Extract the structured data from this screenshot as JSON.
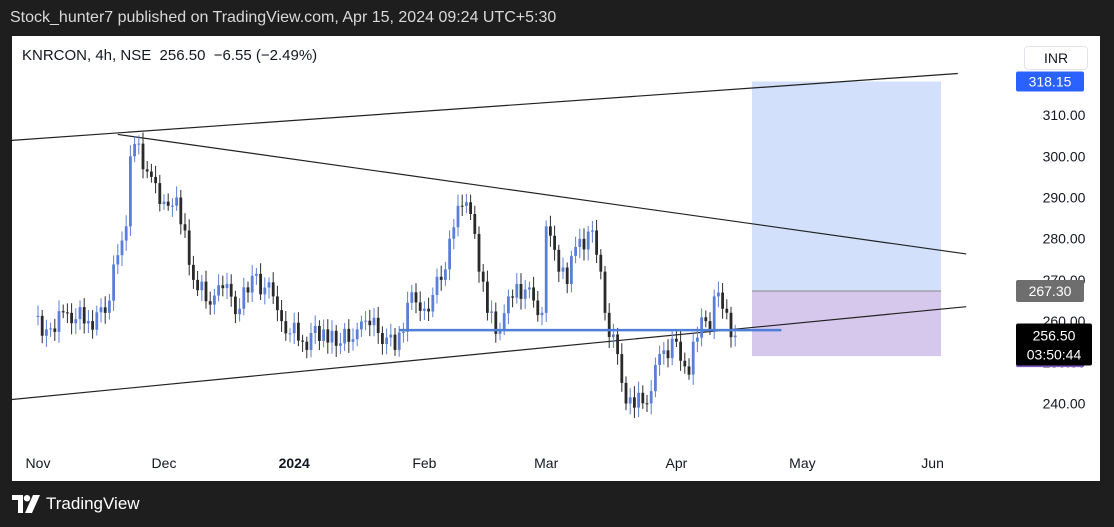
{
  "header": {
    "published_text": "Stock_hunter7 published on TradingView.com, Apr 15, 2024 09:24 UTC+5:30"
  },
  "symbol_info": {
    "text": "KNRCON, 4h, NSE  256.50  −6.55 (−2.49%)"
  },
  "currency_button": {
    "label": "INR"
  },
  "footer": {
    "brand": "TradingView"
  },
  "colors": {
    "candle_up": "#5b7fd9",
    "candle_down": "#2a2a2a",
    "support_line": "#4d7fd8",
    "target_zone": "#d2e0fb",
    "stop_zone": "#d6c8ec",
    "target_label": "#2962ff",
    "stop_label": "#7e57c2",
    "last_price_label": "#000000",
    "level_label": "#6e6e6e"
  },
  "chart_data": {
    "type": "candlestick",
    "title": "",
    "x_axis": {
      "tick_labels": [
        "Nov",
        "Dec",
        "2024",
        "Feb",
        "Mar",
        "Apr",
        "May",
        "Jun"
      ]
    },
    "y_axis": {
      "tick_labels": [
        "240.00",
        "250.00",
        "260.00",
        "270.00",
        "280.00",
        "290.00",
        "300.00",
        "310.00"
      ],
      "range": [
        233,
        327
      ]
    },
    "close_series": [
      {
        "date": "2023-10-31",
        "close": 261
      },
      {
        "date": "2023-11-03",
        "close": 258
      },
      {
        "date": "2023-11-08",
        "close": 262
      },
      {
        "date": "2023-11-13",
        "close": 260
      },
      {
        "date": "2023-11-17",
        "close": 262
      },
      {
        "date": "2023-11-20",
        "close": 276
      },
      {
        "date": "2023-11-22",
        "close": 283
      },
      {
        "date": "2023-11-23",
        "close": 300
      },
      {
        "date": "2023-11-24",
        "close": 303
      },
      {
        "date": "2023-11-28",
        "close": 295
      },
      {
        "date": "2023-12-01",
        "close": 289
      },
      {
        "date": "2023-12-04",
        "close": 290
      },
      {
        "date": "2023-12-06",
        "close": 282
      },
      {
        "date": "2023-12-08",
        "close": 270
      },
      {
        "date": "2023-12-12",
        "close": 264
      },
      {
        "date": "2023-12-15",
        "close": 268
      },
      {
        "date": "2023-12-19",
        "close": 263
      },
      {
        "date": "2023-12-22",
        "close": 271
      },
      {
        "date": "2023-12-27",
        "close": 266
      },
      {
        "date": "2023-12-29",
        "close": 260
      },
      {
        "date": "2024-01-03",
        "close": 255
      },
      {
        "date": "2024-01-08",
        "close": 258
      },
      {
        "date": "2024-01-11",
        "close": 254
      },
      {
        "date": "2024-01-16",
        "close": 258
      },
      {
        "date": "2024-01-19",
        "close": 259
      },
      {
        "date": "2024-01-23",
        "close": 256
      },
      {
        "date": "2024-01-25",
        "close": 253
      },
      {
        "date": "2024-01-29",
        "close": 267
      },
      {
        "date": "2024-02-01",
        "close": 263
      },
      {
        "date": "2024-02-05",
        "close": 270
      },
      {
        "date": "2024-02-07",
        "close": 280
      },
      {
        "date": "2024-02-09",
        "close": 288
      },
      {
        "date": "2024-02-12",
        "close": 286
      },
      {
        "date": "2024-02-14",
        "close": 272
      },
      {
        "date": "2024-02-16",
        "close": 262
      },
      {
        "date": "2024-02-19",
        "close": 258
      },
      {
        "date": "2024-02-21",
        "close": 266
      },
      {
        "date": "2024-02-23",
        "close": 269
      },
      {
        "date": "2024-02-27",
        "close": 265
      },
      {
        "date": "2024-02-29",
        "close": 262
      },
      {
        "date": "2024-03-01",
        "close": 283
      },
      {
        "date": "2024-03-04",
        "close": 272
      },
      {
        "date": "2024-03-06",
        "close": 269
      },
      {
        "date": "2024-03-08",
        "close": 278
      },
      {
        "date": "2024-03-12",
        "close": 282
      },
      {
        "date": "2024-03-14",
        "close": 272
      },
      {
        "date": "2024-03-15",
        "close": 262
      },
      {
        "date": "2024-03-18",
        "close": 252
      },
      {
        "date": "2024-03-19",
        "close": 245
      },
      {
        "date": "2024-03-20",
        "close": 240
      },
      {
        "date": "2024-03-22",
        "close": 239
      },
      {
        "date": "2024-03-26",
        "close": 243
      },
      {
        "date": "2024-03-28",
        "close": 252
      },
      {
        "date": "2024-04-01",
        "close": 255
      },
      {
        "date": "2024-04-03",
        "close": 249
      },
      {
        "date": "2024-04-04",
        "close": 247
      },
      {
        "date": "2024-04-05",
        "close": 255
      },
      {
        "date": "2024-04-08",
        "close": 260
      },
      {
        "date": "2024-04-09",
        "close": 258
      },
      {
        "date": "2024-04-10",
        "close": 266
      },
      {
        "date": "2024-04-12",
        "close": 263
      },
      {
        "date": "2024-04-15",
        "close": 256.5
      }
    ],
    "price_labels": {
      "target": "318.15",
      "entry": "267.30",
      "last_price": "256.50",
      "countdown": "03:50:44",
      "stop": "251.50"
    },
    "levels": {
      "target": 318.15,
      "entry": 267.3,
      "stop": 251.5,
      "last_price": 256.5,
      "support": 257.8
    },
    "trendlines": [
      {
        "name": "upper-resistance",
        "from": {
          "date": "2023-10-18",
          "price": 303.3
        },
        "to": {
          "date": "2024-06-07",
          "price": 320.1
        }
      },
      {
        "name": "descending",
        "from": {
          "date": "2023-11-20",
          "price": 305.3
        },
        "to": {
          "date": "2024-06-09",
          "price": 276.3
        }
      },
      {
        "name": "rising-support",
        "from": {
          "date": "2023-10-18",
          "price": 240.2
        },
        "to": {
          "date": "2024-06-09",
          "price": 263.5
        }
      }
    ],
    "support_line": {
      "from": "2024-01-26",
      "to": "2024-04-26",
      "price": 257.8
    },
    "projection_zone": {
      "from": "2024-04-19",
      "to": "2024-06-03",
      "target": 318.15,
      "entry": 267.3,
      "stop": 251.5
    }
  }
}
